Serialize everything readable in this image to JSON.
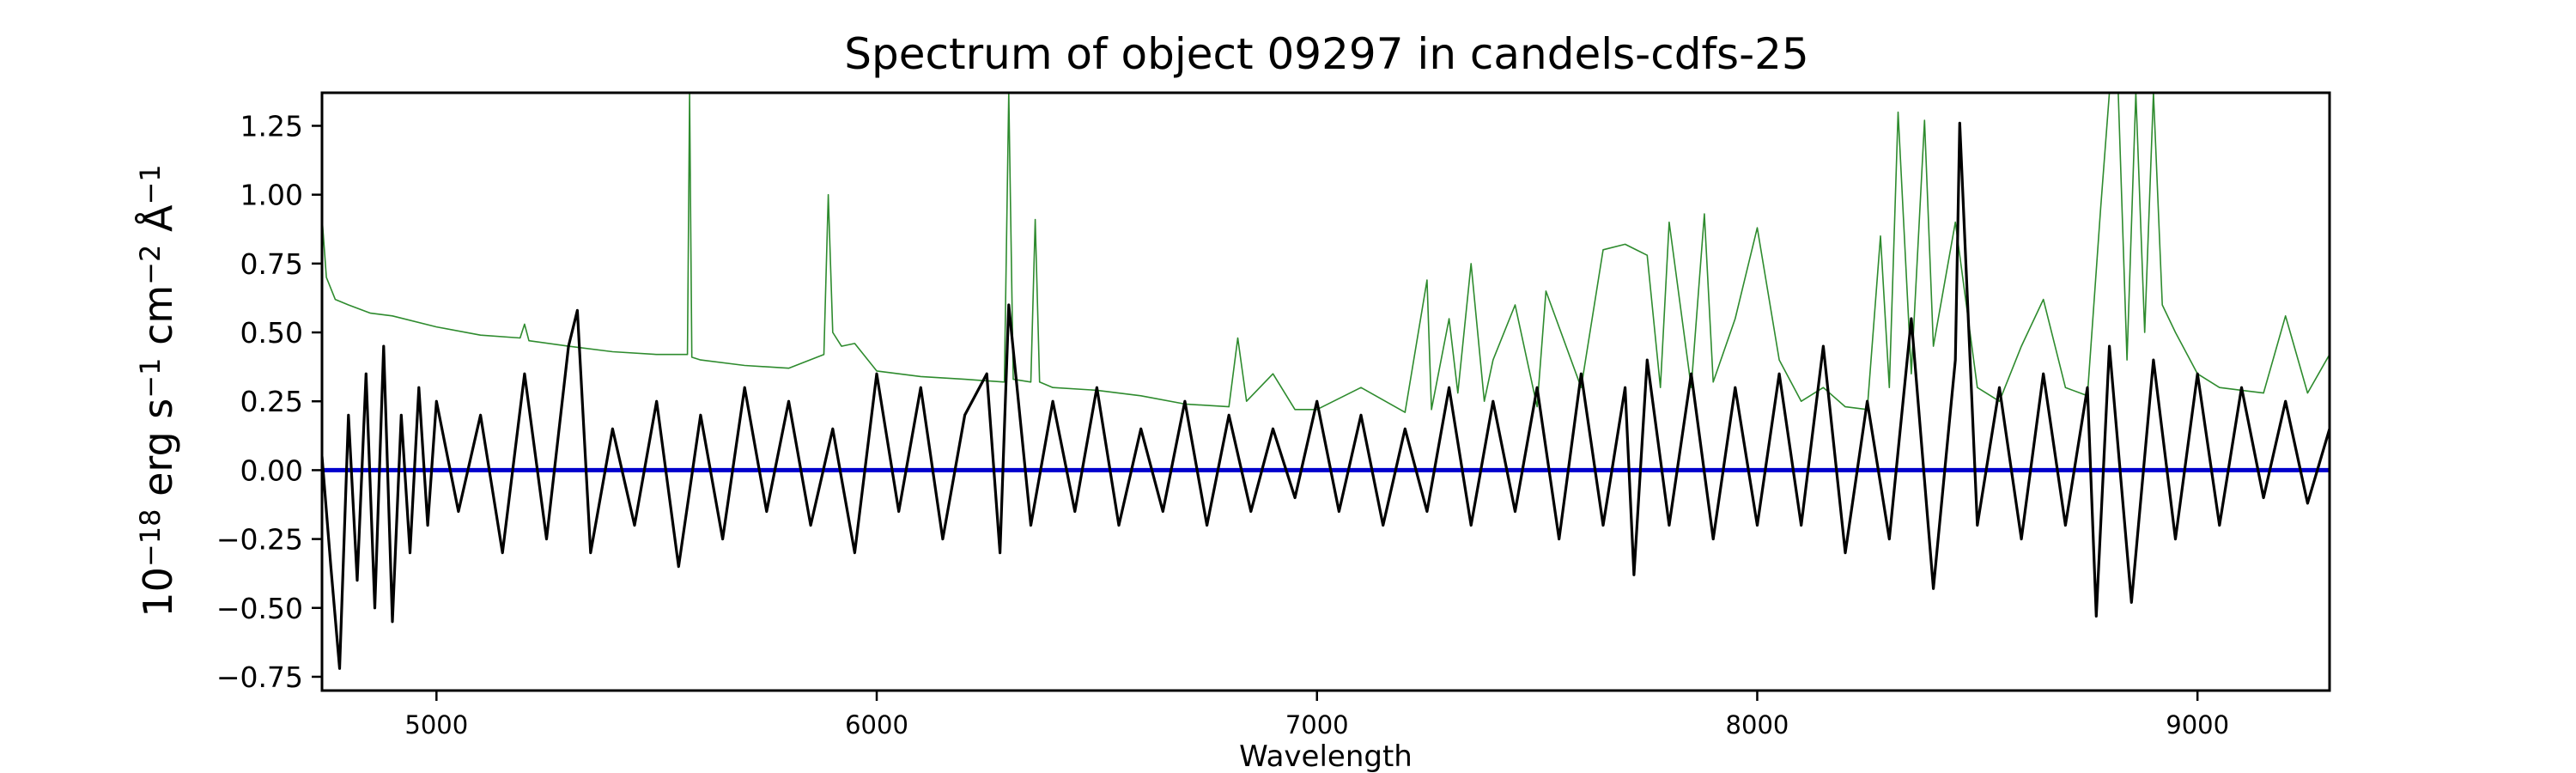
{
  "chart_data": {
    "type": "line",
    "title": "Spectrum of object 09297 in candels-cdfs-25",
    "xlabel": "Wavelength",
    "ylabel_base": "10",
    "ylabel_exp": "−18",
    "ylabel_units": [
      {
        "text": " erg s",
        "sup": "−1"
      },
      {
        "text": " cm",
        "sup": "−2"
      },
      {
        "text": " Å",
        "sup": "−1"
      }
    ],
    "xlim": [
      4740,
      9300
    ],
    "ylim": [
      -0.8,
      1.37
    ],
    "xticks": [
      5000,
      6000,
      7000,
      8000,
      9000
    ],
    "xtick_labels": [
      "5000",
      "6000",
      "7000",
      "8000",
      "9000"
    ],
    "yticks": [
      -0.75,
      -0.5,
      -0.25,
      0.0,
      0.25,
      0.5,
      0.75,
      1.0,
      1.25
    ],
    "ytick_labels": [
      "−0.75",
      "−0.50",
      "−0.25",
      "0.00",
      "0.25",
      "0.50",
      "0.75",
      "1.00",
      "1.25"
    ],
    "grid": false,
    "legend": "none",
    "colors": {
      "flux": "#000000",
      "error": "#2e8b2e",
      "zero": "#0000cc"
    },
    "series": [
      {
        "role": "flux",
        "x": [
          4740,
          4760,
          4780,
          4800,
          4820,
          4840,
          4860,
          4880,
          4900,
          4920,
          4940,
          4960,
          4980,
          5000,
          5050,
          5100,
          5150,
          5200,
          5250,
          5300,
          5320,
          5350,
          5400,
          5450,
          5500,
          5550,
          5600,
          5650,
          5700,
          5750,
          5800,
          5850,
          5900,
          5950,
          6000,
          6050,
          6100,
          6150,
          6200,
          6250,
          6280,
          6300,
          6350,
          6400,
          6450,
          6500,
          6550,
          6600,
          6650,
          6700,
          6750,
          6800,
          6850,
          6900,
          6950,
          7000,
          7050,
          7100,
          7150,
          7200,
          7250,
          7300,
          7350,
          7400,
          7450,
          7500,
          7550,
          7600,
          7650,
          7700,
          7720,
          7750,
          7800,
          7850,
          7900,
          7950,
          8000,
          8050,
          8100,
          8150,
          8200,
          8250,
          8300,
          8350,
          8400,
          8450,
          8460,
          8500,
          8550,
          8600,
          8650,
          8700,
          8750,
          8770,
          8800,
          8850,
          8900,
          8950,
          9000,
          9050,
          9100,
          9150,
          9200,
          9250,
          9300
        ],
        "y": [
          0.05,
          -0.35,
          -0.72,
          0.2,
          -0.4,
          0.35,
          -0.5,
          0.45,
          -0.55,
          0.2,
          -0.3,
          0.3,
          -0.2,
          0.25,
          -0.15,
          0.2,
          -0.3,
          0.35,
          -0.25,
          0.45,
          0.58,
          -0.3,
          0.15,
          -0.2,
          0.25,
          -0.35,
          0.2,
          -0.25,
          0.3,
          -0.15,
          0.25,
          -0.2,
          0.15,
          -0.3,
          0.35,
          -0.15,
          0.3,
          -0.25,
          0.2,
          0.35,
          -0.3,
          0.6,
          -0.2,
          0.25,
          -0.15,
          0.3,
          -0.2,
          0.15,
          -0.15,
          0.25,
          -0.2,
          0.2,
          -0.15,
          0.15,
          -0.1,
          0.25,
          -0.15,
          0.2,
          -0.2,
          0.15,
          -0.15,
          0.3,
          -0.2,
          0.25,
          -0.15,
          0.3,
          -0.25,
          0.35,
          -0.2,
          0.3,
          -0.38,
          0.4,
          -0.2,
          0.35,
          -0.25,
          0.3,
          -0.2,
          0.35,
          -0.2,
          0.45,
          -0.3,
          0.25,
          -0.25,
          0.55,
          -0.43,
          0.4,
          1.26,
          -0.2,
          0.3,
          -0.25,
          0.35,
          -0.2,
          0.3,
          -0.53,
          0.45,
          -0.48,
          0.4,
          -0.25,
          0.35,
          -0.2,
          0.3,
          -0.1,
          0.25,
          -0.12,
          0.15
        ]
      },
      {
        "role": "error",
        "x": [
          4740,
          4750,
          4770,
          4800,
          4850,
          4900,
          5000,
          5100,
          5190,
          5200,
          5210,
          5300,
          5400,
          5500,
          5570,
          5575,
          5580,
          5600,
          5700,
          5800,
          5880,
          5890,
          5900,
          5920,
          5950,
          6000,
          6100,
          6200,
          6290,
          6300,
          6310,
          6350,
          6360,
          6370,
          6400,
          6500,
          6600,
          6700,
          6800,
          6820,
          6840,
          6900,
          6950,
          7000,
          7100,
          7200,
          7250,
          7260,
          7300,
          7320,
          7350,
          7380,
          7400,
          7450,
          7500,
          7520,
          7600,
          7650,
          7700,
          7750,
          7780,
          7800,
          7850,
          7880,
          7900,
          7950,
          8000,
          8050,
          8100,
          8150,
          8200,
          8250,
          8280,
          8300,
          8320,
          8350,
          8380,
          8400,
          8450,
          8500,
          8550,
          8600,
          8650,
          8700,
          8750,
          8780,
          8800,
          8820,
          8840,
          8860,
          8880,
          8900,
          8920,
          8950,
          9000,
          9050,
          9100,
          9150,
          9200,
          9250,
          9300
        ],
        "y": [
          0.92,
          0.7,
          0.62,
          0.6,
          0.57,
          0.56,
          0.52,
          0.49,
          0.48,
          0.53,
          0.47,
          0.45,
          0.43,
          0.42,
          0.42,
          1.37,
          0.41,
          0.4,
          0.38,
          0.37,
          0.42,
          1.0,
          0.5,
          0.45,
          0.46,
          0.36,
          0.34,
          0.33,
          0.32,
          1.37,
          0.33,
          0.32,
          0.91,
          0.32,
          0.3,
          0.29,
          0.27,
          0.24,
          0.23,
          0.48,
          0.25,
          0.35,
          0.22,
          0.22,
          0.3,
          0.21,
          0.69,
          0.22,
          0.55,
          0.28,
          0.75,
          0.25,
          0.4,
          0.6,
          0.23,
          0.65,
          0.3,
          0.8,
          0.82,
          0.78,
          0.3,
          0.9,
          0.3,
          0.93,
          0.32,
          0.55,
          0.88,
          0.4,
          0.25,
          0.3,
          0.23,
          0.22,
          0.85,
          0.3,
          1.3,
          0.35,
          1.27,
          0.45,
          0.9,
          0.3,
          0.25,
          0.45,
          0.62,
          0.3,
          0.27,
          0.95,
          1.37,
          1.37,
          0.4,
          1.37,
          0.5,
          1.37,
          0.6,
          0.5,
          0.35,
          0.3,
          0.29,
          0.28,
          0.56,
          0.28,
          0.42
        ]
      },
      {
        "role": "zero",
        "x": [
          4740,
          9300
        ],
        "y": [
          0,
          0
        ]
      }
    ]
  }
}
